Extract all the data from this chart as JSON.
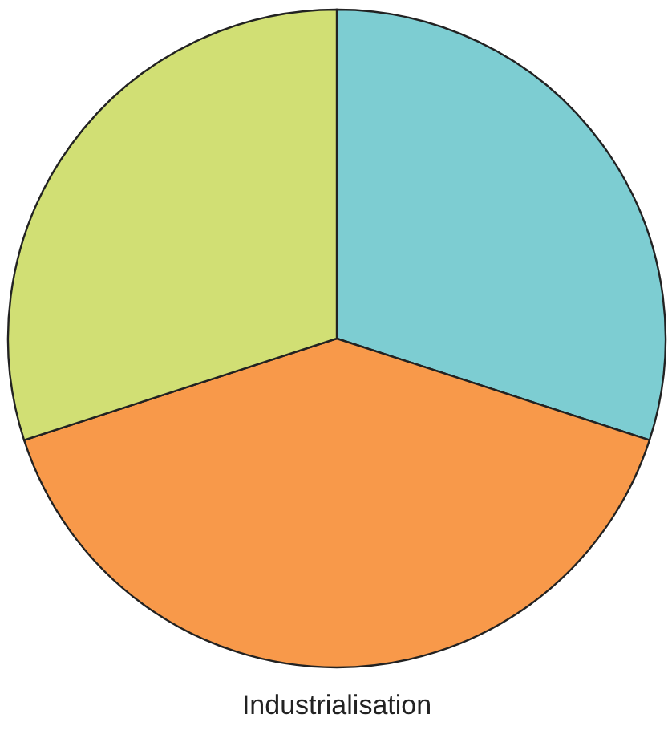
{
  "chart_data": {
    "type": "pie",
    "title": "Industrialisation",
    "categories": [
      null,
      null,
      null
    ],
    "values": [
      30,
      40,
      30
    ],
    "colors": [
      "#7dcdd2",
      "#f8994a",
      "#d1df74"
    ]
  }
}
